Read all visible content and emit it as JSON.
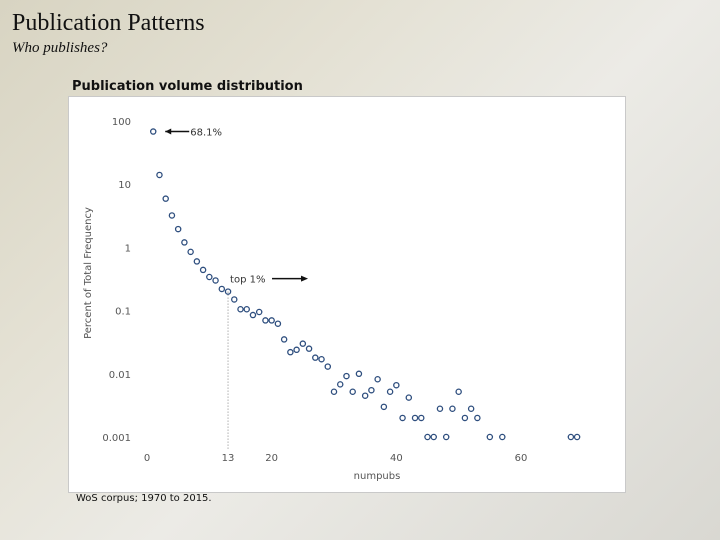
{
  "slide": {
    "title": "Publication Patterns",
    "subtitle": "Who publishes?"
  },
  "footnote": "WoS corpus; 1970 to 2015.",
  "colors": {
    "marker": "#2e4e7e",
    "text": "#555555"
  },
  "chart_data": {
    "type": "scatter",
    "title": "Publication volume distribution",
    "xlabel": "numpubs",
    "ylabel": "Percent of Total Frequency",
    "y_scale": "log",
    "xlim": [
      0,
      70
    ],
    "ylim": [
      0.001,
      100
    ],
    "xticks": [
      "0",
      "20",
      "40",
      "60"
    ],
    "yticks": [
      "100",
      "10",
      "1",
      "0.1",
      "0.01",
      "0.001"
    ],
    "grid": false,
    "points": [
      {
        "x": 1,
        "y": 68.1
      },
      {
        "x": 2,
        "y": 14
      },
      {
        "x": 3,
        "y": 5.9
      },
      {
        "x": 4,
        "y": 3.2
      },
      {
        "x": 5,
        "y": 1.95
      },
      {
        "x": 6,
        "y": 1.2
      },
      {
        "x": 7,
        "y": 0.85
      },
      {
        "x": 8,
        "y": 0.6
      },
      {
        "x": 9,
        "y": 0.44
      },
      {
        "x": 10,
        "y": 0.34
      },
      {
        "x": 11,
        "y": 0.3
      },
      {
        "x": 12,
        "y": 0.22
      },
      {
        "x": 13,
        "y": 0.2
      },
      {
        "x": 14,
        "y": 0.15
      },
      {
        "x": 15,
        "y": 0.105
      },
      {
        "x": 16,
        "y": 0.105
      },
      {
        "x": 17,
        "y": 0.085
      },
      {
        "x": 18,
        "y": 0.095
      },
      {
        "x": 19,
        "y": 0.07
      },
      {
        "x": 20,
        "y": 0.07
      },
      {
        "x": 21,
        "y": 0.062
      },
      {
        "x": 22,
        "y": 0.035
      },
      {
        "x": 23,
        "y": 0.022
      },
      {
        "x": 24,
        "y": 0.024
      },
      {
        "x": 25,
        "y": 0.03
      },
      {
        "x": 26,
        "y": 0.025
      },
      {
        "x": 27,
        "y": 0.018
      },
      {
        "x": 28,
        "y": 0.017
      },
      {
        "x": 29,
        "y": 0.013
      },
      {
        "x": 30,
        "y": 0.0052
      },
      {
        "x": 31,
        "y": 0.0068
      },
      {
        "x": 32,
        "y": 0.0092
      },
      {
        "x": 33,
        "y": 0.0052
      },
      {
        "x": 34,
        "y": 0.01
      },
      {
        "x": 35,
        "y": 0.0045
      },
      {
        "x": 36,
        "y": 0.0055
      },
      {
        "x": 37,
        "y": 0.0082
      },
      {
        "x": 38,
        "y": 0.003
      },
      {
        "x": 39,
        "y": 0.0052
      },
      {
        "x": 40,
        "y": 0.0066
      },
      {
        "x": 41,
        "y": 0.002
      },
      {
        "x": 42,
        "y": 0.0042
      },
      {
        "x": 43,
        "y": 0.002
      },
      {
        "x": 44,
        "y": 0.002
      },
      {
        "x": 45,
        "y": 0.001
      },
      {
        "x": 46,
        "y": 0.001
      },
      {
        "x": 47,
        "y": 0.0028
      },
      {
        "x": 48,
        "y": 0.001
      },
      {
        "x": 49,
        "y": 0.0028
      },
      {
        "x": 50,
        "y": 0.0052
      },
      {
        "x": 51,
        "y": 0.002
      },
      {
        "x": 52,
        "y": 0.0028
      },
      {
        "x": 53,
        "y": 0.002
      },
      {
        "x": 55,
        "y": 0.001
      },
      {
        "x": 57,
        "y": 0.001
      },
      {
        "x": 68,
        "y": 0.001
      },
      {
        "x": 69,
        "y": 0.001
      }
    ],
    "annotations": [
      {
        "label": "68.1%",
        "x": 1,
        "y": 68.1
      },
      {
        "label": "top 1%",
        "x": 13,
        "y": 0.32
      }
    ],
    "reference_line": {
      "x": 13,
      "label": "13"
    }
  }
}
